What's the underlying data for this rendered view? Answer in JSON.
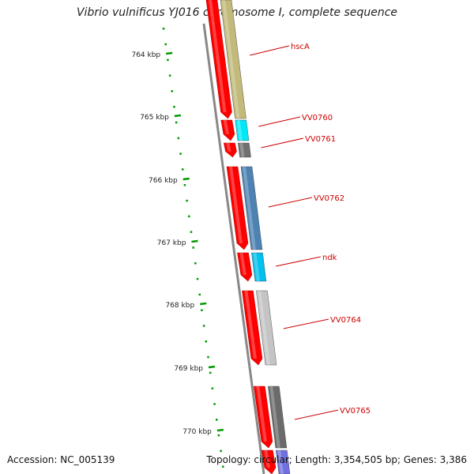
{
  "title": "Vibrio vulnificus YJ016 chromosome I, complete sequence",
  "accession": "Accession: NC_005139",
  "topology": "Topology: circular; Length: 3,354,505 bp; Genes: 3,386",
  "colors": {
    "strand_red": "#ff0000",
    "label_red": "#cc0000",
    "tick_green": "#009900",
    "backbone": "#888888"
  },
  "ticks": [
    {
      "label": "764 kbp"
    },
    {
      "label": "765 kbp"
    },
    {
      "label": "766 kbp"
    },
    {
      "label": "767 kbp"
    },
    {
      "label": "768 kbp"
    },
    {
      "label": "769 kbp"
    },
    {
      "label": "770 kbp"
    }
  ],
  "genes": [
    {
      "name": "hscA",
      "color": "#c2b97a"
    },
    {
      "name": "VV0760",
      "color": "#00e8f8"
    },
    {
      "name": "VV0761",
      "color": "#707070"
    },
    {
      "name": "VV0762",
      "color": "#4d82b3"
    },
    {
      "name": "ndk",
      "color": "#00c0ee"
    },
    {
      "name": "VV0764",
      "color": "#c4c4c4"
    },
    {
      "name": "VV0765",
      "color": "#6b6b6b"
    },
    {
      "name": "",
      "color": "#7070e0"
    }
  ]
}
